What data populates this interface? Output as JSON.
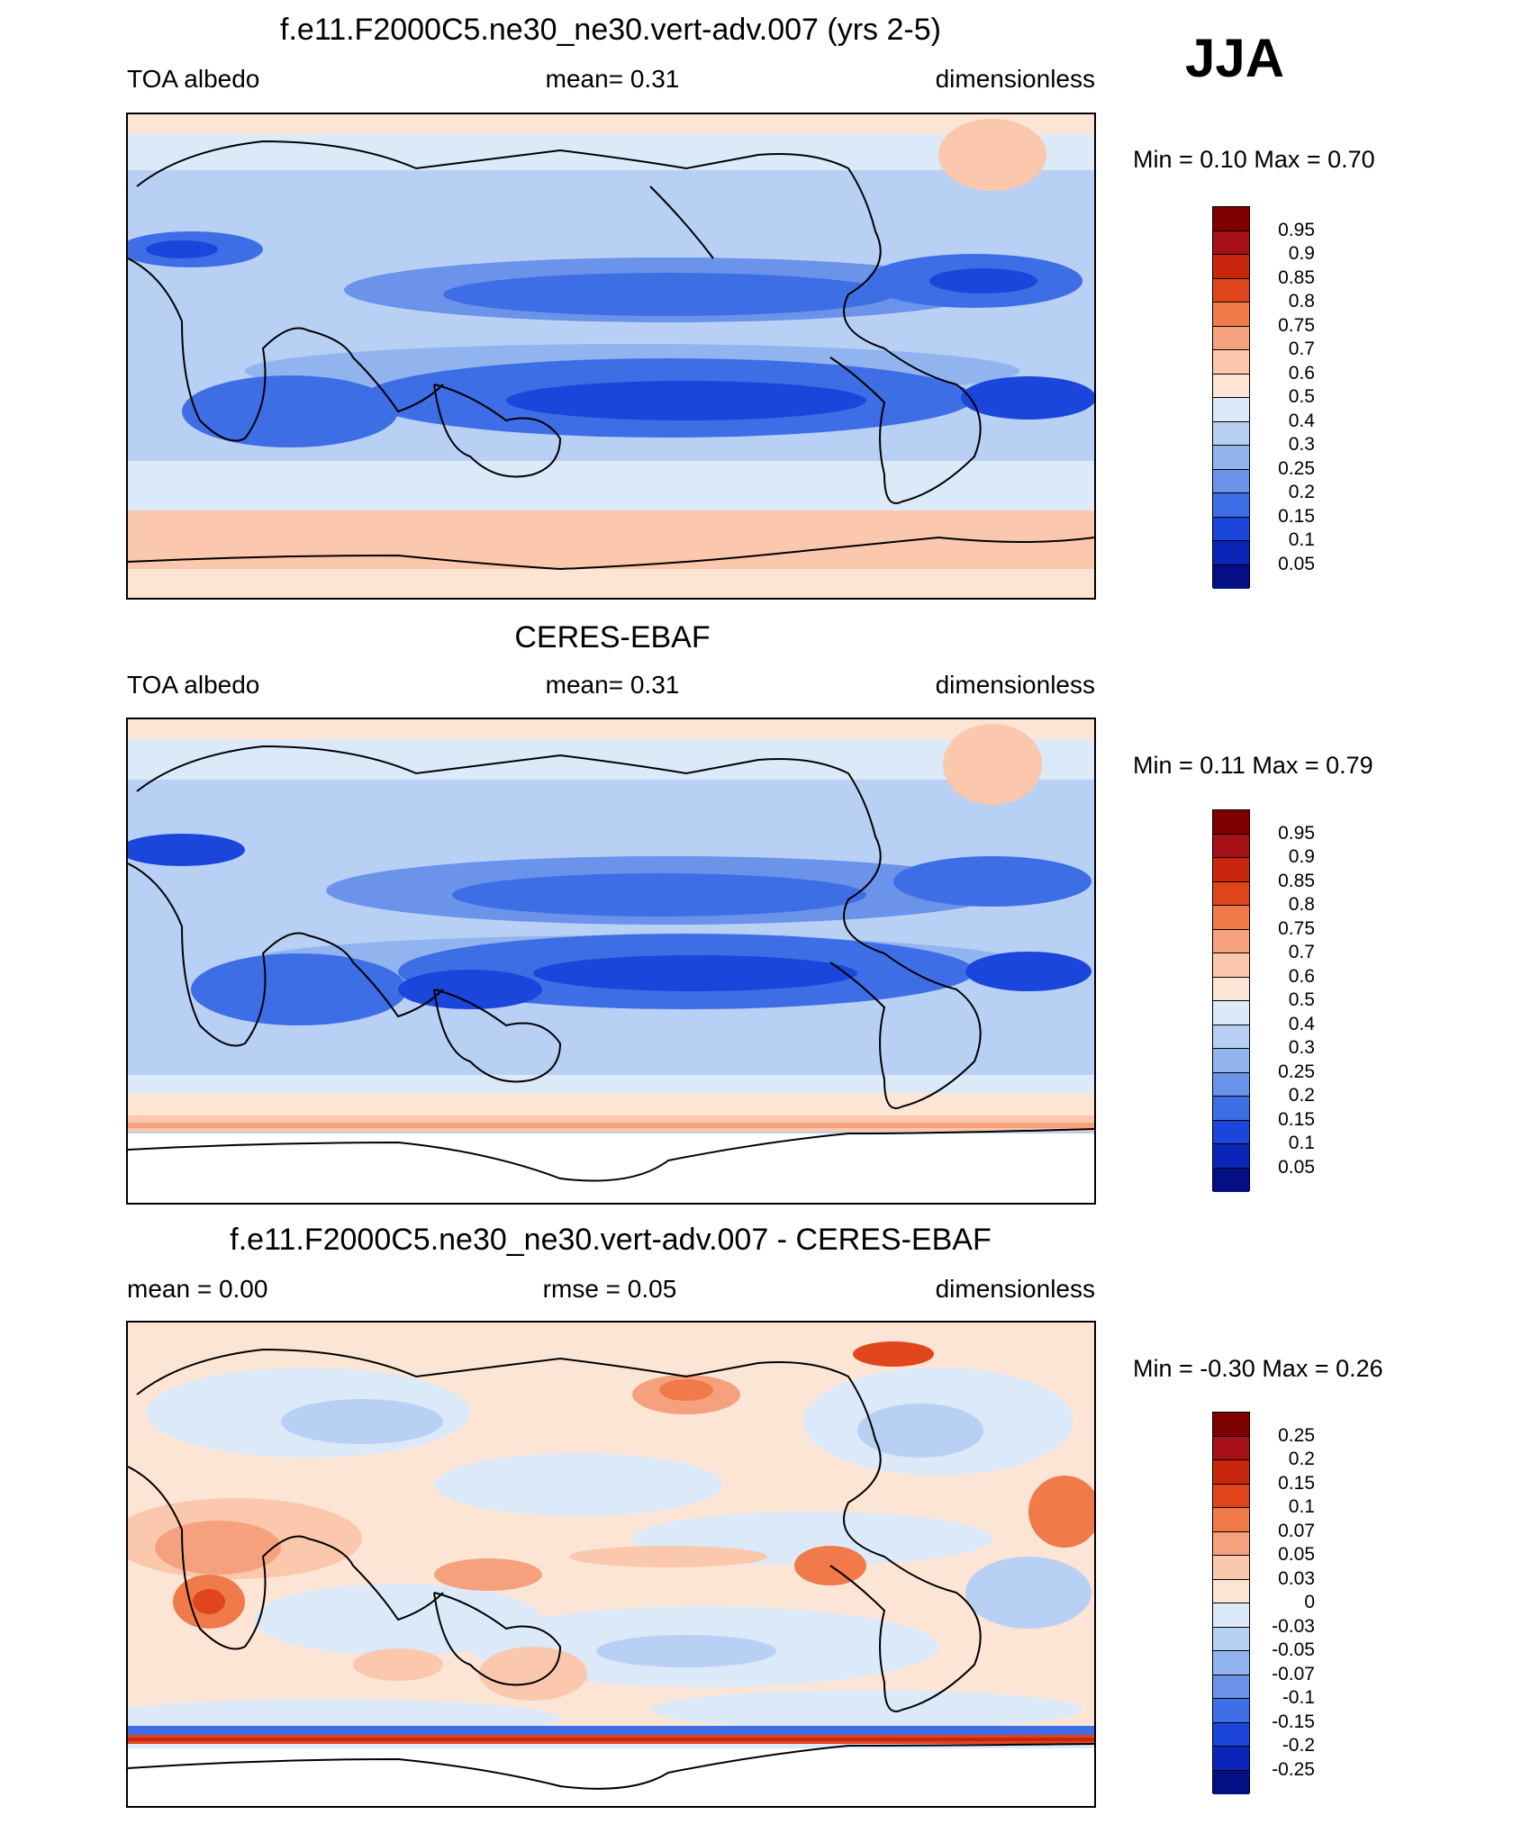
{
  "season": "JJA",
  "panels": [
    {
      "id": "model",
      "title": "f.e11.F2000C5.ne30_ne30.vert-adv.007 (yrs 2-5)",
      "left_label": "TOA albedo",
      "center_label": "mean=   0.31",
      "right_label": "dimensionless",
      "minmax": "Min =   0.10 Max =   0.70",
      "colorbar": {
        "labels": [
          "0.95",
          "0.9",
          "0.85",
          "0.8",
          "0.75",
          "0.7",
          "0.6",
          "0.5",
          "0.4",
          "0.3",
          "0.25",
          "0.2",
          "0.15",
          "0.1",
          "0.05"
        ],
        "colors": [
          "#7f0000",
          "#a50f15",
          "#c8260c",
          "#e0451c",
          "#f07a4a",
          "#f6a17e",
          "#fbc7ad",
          "#fde5d6",
          "#dce9f8",
          "#b8d0f4",
          "#91b4ef",
          "#6b93ea",
          "#3e6ee6",
          "#1a46dc",
          "#0b25b8",
          "#050f85"
        ]
      }
    },
    {
      "id": "obs",
      "title": "CERES-EBAF",
      "left_label": "TOA albedo",
      "center_label": "mean=   0.31",
      "right_label": "dimensionless",
      "minmax": "Min =   0.11 Max =   0.79",
      "colorbar": {
        "labels": [
          "0.95",
          "0.9",
          "0.85",
          "0.8",
          "0.75",
          "0.7",
          "0.6",
          "0.5",
          "0.4",
          "0.3",
          "0.25",
          "0.2",
          "0.15",
          "0.1",
          "0.05"
        ],
        "colors": [
          "#7f0000",
          "#a50f15",
          "#c8260c",
          "#e0451c",
          "#f07a4a",
          "#f6a17e",
          "#fbc7ad",
          "#fde5d6",
          "#dce9f8",
          "#b8d0f4",
          "#91b4ef",
          "#6b93ea",
          "#3e6ee6",
          "#1a46dc",
          "#0b25b8",
          "#050f85"
        ]
      }
    },
    {
      "id": "diff",
      "title": "f.e11.F2000C5.ne30_ne30.vert-adv.007 - CERES-EBAF",
      "left_label": "mean =   0.00",
      "center_label": "rmse =   0.05",
      "right_label": "dimensionless",
      "minmax": "Min =  -0.30 Max =   0.26",
      "colorbar": {
        "labels": [
          "0.25",
          "0.2",
          "0.15",
          "0.1",
          "0.07",
          "0.05",
          "0.03",
          "0",
          "-0.03",
          "-0.05",
          "-0.07",
          "-0.1",
          "-0.15",
          "-0.2",
          "-0.25"
        ],
        "colors": [
          "#7f0000",
          "#a50f15",
          "#c8260c",
          "#e0451c",
          "#f07a4a",
          "#f6a17e",
          "#fbc7ad",
          "#fde5d6",
          "#dce9f8",
          "#b8d0f4",
          "#91b4ef",
          "#6b93ea",
          "#3e6ee6",
          "#1a46dc",
          "#0b25b8",
          "#050f85"
        ]
      }
    }
  ]
}
